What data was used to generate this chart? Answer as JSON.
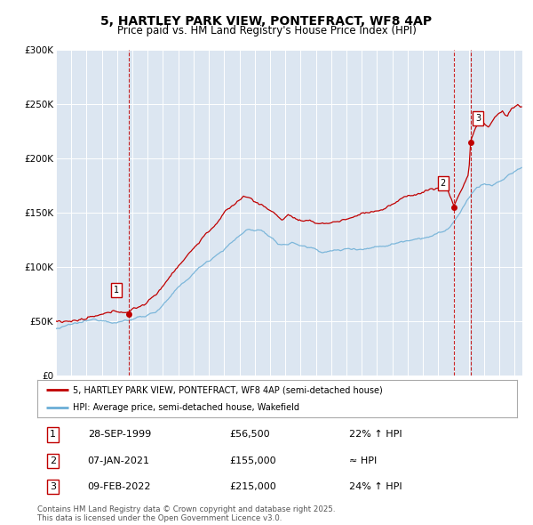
{
  "title": "5, HARTLEY PARK VIEW, PONTEFRACT, WF8 4AP",
  "subtitle": "Price paid vs. HM Land Registry's House Price Index (HPI)",
  "title_fontsize": 10,
  "subtitle_fontsize": 8.5,
  "background_color": "#ffffff",
  "plot_bg_color": "#dce6f1",
  "grid_color": "#ffffff",
  "ylim": [
    0,
    300000
  ],
  "yticks": [
    0,
    50000,
    100000,
    150000,
    200000,
    250000,
    300000
  ],
  "ytick_labels": [
    "£0",
    "£50K",
    "£100K",
    "£150K",
    "£200K",
    "£250K",
    "£300K"
  ],
  "xlim_start": 1995.0,
  "xlim_end": 2025.5,
  "sale_color": "#c00000",
  "hpi_color": "#6baed6",
  "vline_color": "#c00000",
  "marker_color": "#c00000",
  "sale_transactions": [
    {
      "date_year": 1999.74,
      "price": 56500,
      "label": "1"
    },
    {
      "date_year": 2021.02,
      "price": 155000,
      "label": "2"
    },
    {
      "date_year": 2022.11,
      "price": 215000,
      "label": "3"
    }
  ],
  "legend_entries": [
    "5, HARTLEY PARK VIEW, PONTEFRACT, WF8 4AP (semi-detached house)",
    "HPI: Average price, semi-detached house, Wakefield"
  ],
  "table_rows": [
    {
      "num": "1",
      "date": "28-SEP-1999",
      "price": "£56,500",
      "note": "22% ↑ HPI"
    },
    {
      "num": "2",
      "date": "07-JAN-2021",
      "price": "£155,000",
      "note": "≈ HPI"
    },
    {
      "num": "3",
      "date": "09-FEB-2022",
      "price": "£215,000",
      "note": "24% ↑ HPI"
    }
  ],
  "footer": "Contains HM Land Registry data © Crown copyright and database right 2025.\nThis data is licensed under the Open Government Licence v3.0."
}
